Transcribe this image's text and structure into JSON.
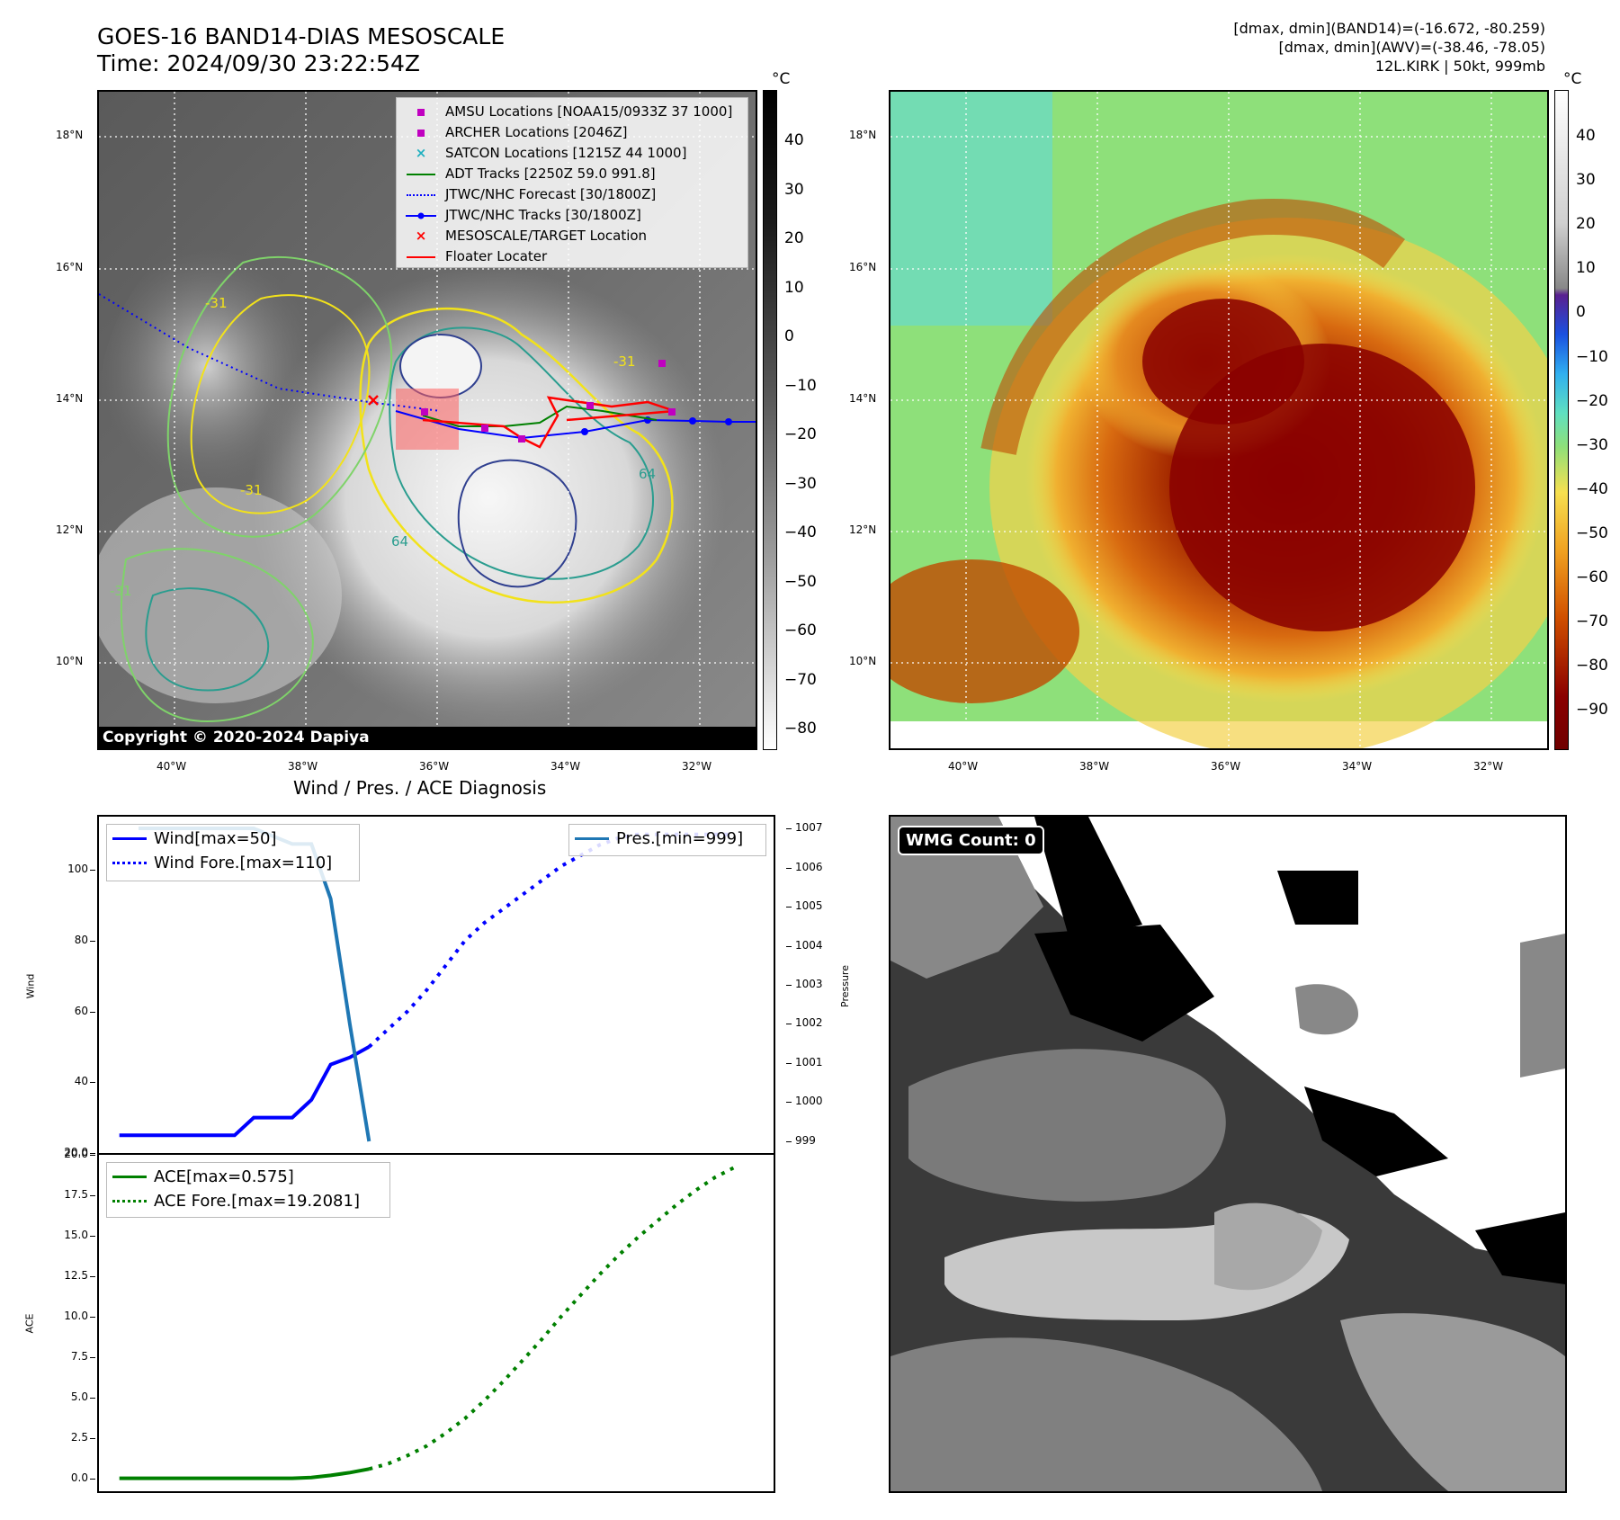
{
  "header": {
    "title_line1": "GOES-16 BAND14-DIAS MESOSCALE",
    "title_line2": "Time: 2024/09/30 23:22:54Z",
    "info_line1": "[dmax, dmin](BAND14)=(-16.672, -80.259)",
    "info_line2": "[dmax, dmin](AWV)=(-38.46, -78.05)",
    "info_line3": "12L.KIRK | 50kt, 999mb"
  },
  "ir_map": {
    "lat_ticks": [
      "18°N",
      "16°N",
      "14°N",
      "12°N",
      "10°N"
    ],
    "lon_ticks": [
      "40°W",
      "38°W",
      "36°W",
      "34°W",
      "32°W"
    ],
    "colorbar_unit": "°C",
    "colorbar_ticks": [
      "40",
      "30",
      "20",
      "10",
      "0",
      "−10",
      "−20",
      "−30",
      "−40",
      "−50",
      "−60",
      "−70",
      "−80"
    ],
    "copyright": "Copyright © 2020-2024 Dapiya",
    "legend": [
      {
        "label": "AMSU Locations [NOAA15/0933Z 37 1000]",
        "symbol": "square",
        "color": "#c000c0"
      },
      {
        "label": "ARCHER Locations [2046Z]",
        "symbol": "square",
        "color": "#c000c0"
      },
      {
        "label": "SATCON Locations [1215Z 44 1000]",
        "symbol": "x",
        "color": "#20b0c0"
      },
      {
        "label": "ADT Tracks [2250Z 59.0 991.8]",
        "symbol": "line",
        "color": "#008000"
      },
      {
        "label": "JTWC/NHC Forecast [30/1800Z]",
        "symbol": "dotted",
        "color": "#0000ff"
      },
      {
        "label": "JTWC/NHC Tracks [30/1800Z]",
        "symbol": "line-dot",
        "color": "#0000ff"
      },
      {
        "label": "MESOSCALE/TARGET Location",
        "symbol": "x",
        "color": "#ff0000"
      },
      {
        "label": "Floater Locater",
        "symbol": "line",
        "color": "#ff0000"
      }
    ],
    "contour_labels": [
      "-31",
      "-31",
      "64",
      "64",
      "-31",
      "-31"
    ]
  },
  "wv_map": {
    "lat_ticks": [
      "18°N",
      "16°N",
      "14°N",
      "12°N",
      "10°N"
    ],
    "lon_ticks": [
      "40°W",
      "38°W",
      "36°W",
      "34°W",
      "32°W"
    ],
    "colorbar_unit": "°C",
    "colorbar_ticks": [
      "40",
      "30",
      "20",
      "10",
      "0",
      "−10",
      "−20",
      "−30",
      "−40",
      "−50",
      "−60",
      "−70",
      "−80",
      "−90"
    ]
  },
  "chart_data": [
    {
      "type": "line",
      "title": "Wind / Pres. / ACE Diagnosis",
      "ylabel": "Wind",
      "ylabel_right": "Pressure",
      "ylim": [
        20,
        115
      ],
      "ylim_right": [
        998.7,
        1007.3
      ],
      "yticks": [
        "100",
        "80",
        "60",
        "40",
        "20.0"
      ],
      "yticks_right": [
        "1007",
        "1006",
        "1005",
        "1004",
        "1003",
        "1002",
        "1001",
        "1000",
        "999"
      ],
      "legend_left": [
        "Wind[max=50]",
        "Wind Fore.[max=110]"
      ],
      "legend_right": [
        "Pres.[min=999]"
      ],
      "series": [
        {
          "name": "Wind[max=50]",
          "axis": "left",
          "style": "solid",
          "color": "#0000ff",
          "x": [
            0,
            1,
            2,
            3,
            4,
            5,
            6,
            7,
            8,
            9,
            10,
            11,
            12,
            13
          ],
          "y": [
            25,
            25,
            25,
            25,
            25,
            25,
            25,
            30,
            30,
            30,
            35,
            45,
            47,
            50
          ]
        },
        {
          "name": "Wind Fore.[max=110]",
          "axis": "left",
          "style": "dotted",
          "color": "#0000ff",
          "x": [
            13,
            14,
            15,
            16,
            17,
            18,
            19,
            20,
            21,
            22,
            23,
            24,
            25,
            26,
            27,
            28,
            29,
            30,
            31,
            32
          ],
          "y": [
            50,
            55,
            60,
            66,
            73,
            80,
            85,
            89,
            93,
            97,
            101,
            104,
            107,
            109,
            110,
            110,
            110,
            110,
            110,
            110
          ]
        },
        {
          "name": "Pres.[min=999]",
          "axis": "right",
          "style": "solid",
          "color": "#1f77b4",
          "x": [
            1,
            2,
            3,
            4,
            5,
            6,
            7,
            8,
            9,
            10,
            11,
            12,
            13
          ],
          "y": [
            1007,
            1007,
            1007,
            1007,
            1007,
            1007,
            1007,
            1006.8,
            1006.6,
            1006.6,
            1005.2,
            1002,
            999
          ]
        }
      ]
    },
    {
      "type": "line",
      "ylabel": "ACE",
      "ylim": [
        -0.8,
        20.0
      ],
      "yticks": [
        "20.0",
        "17.5",
        "15.0",
        "12.5",
        "10.0",
        "7.5",
        "5.0",
        "2.5",
        "0.0"
      ],
      "legend": [
        "ACE[max=0.575]",
        "ACE Fore.[max=19.2081]"
      ],
      "series": [
        {
          "name": "ACE[max=0.575]",
          "style": "solid",
          "color": "#008000",
          "x": [
            0,
            1,
            2,
            3,
            4,
            5,
            6,
            7,
            8,
            9,
            10,
            11,
            12,
            13
          ],
          "y": [
            0,
            0,
            0,
            0,
            0,
            0,
            0,
            0,
            0,
            0,
            0.05,
            0.18,
            0.35,
            0.575
          ]
        },
        {
          "name": "ACE Fore.[max=19.2081]",
          "style": "dotted",
          "color": "#008000",
          "x": [
            13,
            14,
            15,
            16,
            17,
            18,
            19,
            20,
            21,
            22,
            23,
            24,
            25,
            26,
            27,
            28,
            29,
            30,
            31,
            32
          ],
          "y": [
            0.575,
            0.9,
            1.4,
            2.0,
            2.8,
            3.7,
            4.8,
            6.0,
            7.3,
            8.6,
            10.0,
            11.3,
            12.6,
            13.8,
            14.9,
            15.9,
            16.9,
            17.8,
            18.6,
            19.2081
          ]
        }
      ]
    }
  ],
  "wmg": {
    "label": "WMG Count: 0"
  }
}
